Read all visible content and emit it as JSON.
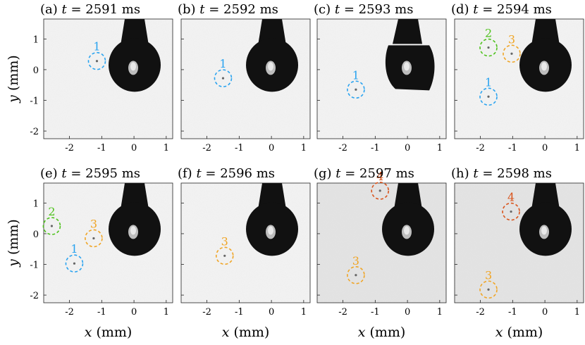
{
  "figure": {
    "tick_labels_x": [
      "-2",
      "-1",
      "0",
      "1"
    ],
    "tick_labels_y": [
      "1",
      "0",
      "-1",
      "-2"
    ],
    "x_axis_label": {
      "var": "x",
      "unit": "(mm)"
    },
    "y_axis_label": {
      "var": "y",
      "unit": "(mm)"
    },
    "colors": {
      "marker_1": "#29a3f0",
      "marker_2": "#4fc21d",
      "marker_3": "#f0a526",
      "marker_4": "#d9541c",
      "drop": "#111111",
      "background_light": "#f3f3f3",
      "background_dark": "#e4e4e4"
    },
    "panels": [
      {
        "tag": "(a)",
        "var": "t",
        "value": "= 2591 ms",
        "drop": "full",
        "markers": [
          {
            "label": "1",
            "x": -1.15,
            "y": 0.28,
            "color": "marker_1"
          }
        ]
      },
      {
        "tag": "(b)",
        "var": "t",
        "value": "= 2592 ms",
        "drop": "full",
        "markers": [
          {
            "label": "1",
            "x": -1.5,
            "y": -0.28,
            "color": "marker_1"
          }
        ]
      },
      {
        "tag": "(c)",
        "var": "t",
        "value": "= 2593 ms",
        "drop": "partial",
        "markers": [
          {
            "label": "1",
            "x": -1.6,
            "y": -0.65,
            "color": "marker_1"
          }
        ]
      },
      {
        "tag": "(d)",
        "var": "t",
        "value": "= 2594 ms",
        "drop": "full",
        "markers": [
          {
            "label": "2",
            "x": -1.75,
            "y": 0.72,
            "color": "marker_2"
          },
          {
            "label": "3",
            "x": -1.03,
            "y": 0.52,
            "color": "marker_3"
          },
          {
            "label": "1",
            "x": -1.75,
            "y": -0.88,
            "color": "marker_1"
          }
        ]
      },
      {
        "tag": "(e)",
        "var": "t",
        "value": "= 2595 ms",
        "drop": "full",
        "markers": [
          {
            "label": "2",
            "x": -2.55,
            "y": 0.25,
            "color": "marker_2"
          },
          {
            "label": "3",
            "x": -1.25,
            "y": -0.15,
            "color": "marker_3"
          },
          {
            "label": "1",
            "x": -1.85,
            "y": -0.97,
            "color": "marker_1"
          }
        ]
      },
      {
        "tag": "(f)",
        "var": "t",
        "value": "= 2596 ms",
        "drop": "full",
        "markers": [
          {
            "label": "3",
            "x": -1.45,
            "y": -0.72,
            "color": "marker_3"
          }
        ]
      },
      {
        "tag": "(g)",
        "var": "t",
        "value": "= 2597 ms",
        "drop": "full",
        "dark": true,
        "markers": [
          {
            "label": "4",
            "x": -0.85,
            "y": 1.4,
            "color": "marker_4"
          },
          {
            "label": "3",
            "x": -1.6,
            "y": -1.35,
            "color": "marker_3"
          }
        ]
      },
      {
        "tag": "(h)",
        "var": "t",
        "value": "= 2598 ms",
        "drop": "full",
        "dark": true,
        "markers": [
          {
            "label": "4",
            "x": -1.05,
            "y": 0.72,
            "color": "marker_4"
          },
          {
            "label": "3",
            "x": -1.75,
            "y": -1.82,
            "color": "marker_3"
          }
        ]
      }
    ]
  }
}
